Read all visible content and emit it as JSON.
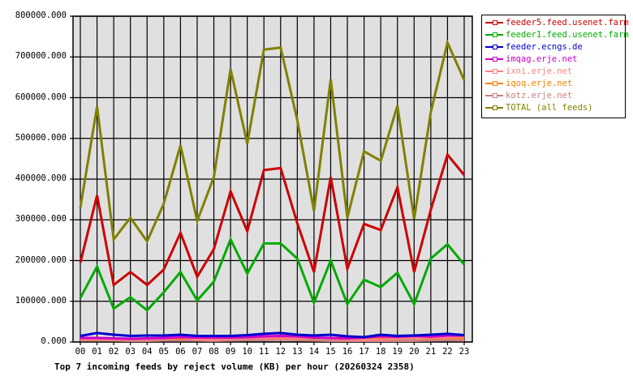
{
  "chart_data": {
    "type": "line",
    "title": "Top 7 incoming feeds by reject volume (KB) per hour (20260324 2358)",
    "xlabel": "",
    "ylabel": "",
    "ylim": [
      0,
      800000
    ],
    "grid": true,
    "legend_position": "right",
    "yticks": [
      "0.000",
      "100000.000",
      "200000.000",
      "300000.000",
      "400000.000",
      "500000.000",
      "600000.000",
      "700000.000",
      "800000.000"
    ],
    "categories": [
      "00",
      "01",
      "02",
      "03",
      "04",
      "05",
      "06",
      "07",
      "08",
      "09",
      "10",
      "11",
      "12",
      "13",
      "14",
      "15",
      "16",
      "17",
      "18",
      "19",
      "20",
      "21",
      "22",
      "23"
    ],
    "series": [
      {
        "name": "feeder5.feed.usenet.farm",
        "color": "#cc0000",
        "values": [
          195000,
          360000,
          140000,
          172000,
          140000,
          178000,
          268000,
          160000,
          228000,
          370000,
          272000,
          422000,
          427000,
          292000,
          172000,
          405000,
          180000,
          290000,
          275000,
          380000,
          172000,
          325000,
          460000,
          410000
        ]
      },
      {
        "name": "feeder1.feed.usenet.farm",
        "color": "#00aa00",
        "values": [
          108000,
          185000,
          82000,
          110000,
          78000,
          122000,
          172000,
          102000,
          148000,
          252000,
          168000,
          242000,
          242000,
          205000,
          97000,
          200000,
          93000,
          153000,
          135000,
          170000,
          93000,
          205000,
          240000,
          190000
        ]
      },
      {
        "name": "feeder.ecngs.de",
        "color": "#0000cc",
        "values": [
          15000,
          22000,
          18000,
          15000,
          16000,
          16000,
          18000,
          15000,
          15000,
          15000,
          17000,
          20000,
          22000,
          18000,
          16000,
          18000,
          14000,
          12000,
          18000,
          15000,
          16000,
          18000,
          20000,
          17000
        ]
      },
      {
        "name": "imqag.erje.net",
        "color": "#cc00cc",
        "values": [
          10000,
          10000,
          9000,
          8000,
          9000,
          10000,
          12000,
          11000,
          11000,
          11000,
          12000,
          14000,
          15000,
          14000,
          11000,
          10000,
          9000,
          11000,
          14000,
          13000,
          15000,
          13000,
          16000,
          16000
        ]
      },
      {
        "name": "ixni.erje.net",
        "color": "#ff8080",
        "values": [
          6000,
          7000,
          6000,
          6000,
          6000,
          8000,
          12000,
          6000,
          6000,
          8000,
          10000,
          10000,
          8000,
          8000,
          12000,
          8000,
          6000,
          5000,
          6000,
          8000,
          10000,
          12000,
          10000,
          14000
        ]
      },
      {
        "name": "iqoq.erje.net",
        "color": "#ff8000",
        "values": [
          8000,
          8000,
          8000,
          8000,
          8000,
          9000,
          9000,
          9000,
          9000,
          9000,
          10000,
          10000,
          10000,
          10000,
          10000,
          10000,
          10000,
          7000,
          8000,
          9000,
          10000,
          10000,
          10000,
          10000
        ]
      },
      {
        "name": "kotz.erje.net",
        "color": "#cc8080",
        "values": [
          4000,
          4000,
          4000,
          3000,
          3000,
          4000,
          4000,
          4000,
          3000,
          4000,
          5000,
          5000,
          6000,
          5000,
          4000,
          3000,
          3000,
          3000,
          3000,
          3000,
          3000,
          4000,
          5000,
          4000
        ]
      },
      {
        "name": "TOTAL (all feeds)",
        "color": "#808000",
        "values": [
          330000,
          578000,
          252000,
          305000,
          247000,
          340000,
          483000,
          297000,
          405000,
          670000,
          487000,
          718000,
          723000,
          545000,
          322000,
          645000,
          305000,
          468000,
          445000,
          580000,
          302000,
          565000,
          735000,
          643000
        ]
      }
    ]
  },
  "legend": {
    "items": [
      {
        "label": "feeder5.feed.usenet.farm",
        "color": "#cc0000"
      },
      {
        "label": "feeder1.feed.usenet.farm",
        "color": "#00aa00"
      },
      {
        "label": "feeder.ecngs.de",
        "color": "#0000cc"
      },
      {
        "label": "imqag.erje.net",
        "color": "#cc00cc"
      },
      {
        "label": "ixni.erje.net",
        "color": "#ff8080"
      },
      {
        "label": "iqoq.erje.net",
        "color": "#ff8000"
      },
      {
        "label": "kotz.erje.net",
        "color": "#cc8080"
      },
      {
        "label": "TOTAL (all feeds)",
        "color": "#808000"
      }
    ]
  }
}
